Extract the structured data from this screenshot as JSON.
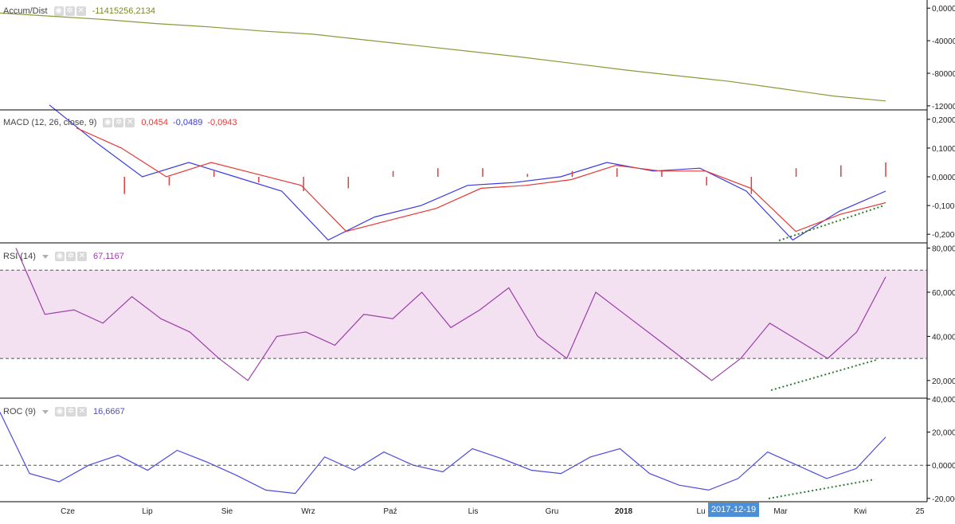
{
  "colors": {
    "accum": "#8a9a3a",
    "macd": "#3b3be0",
    "signal": "#e53935",
    "hist": "#d94040",
    "rsi": "#9b3fa6",
    "rsi_band": "#f3e1f2",
    "roc": "#4a4ae0",
    "trend": "#2e7d32",
    "axis": "#000000",
    "grid_dash": "#555555"
  },
  "panes": {
    "accum": {
      "title": "Accum/Dist",
      "value": "-11415256,2134",
      "ticks": [
        "0,0000",
        "-40000",
        "-80000",
        "-12000"
      ]
    },
    "macd": {
      "title": "MACD (12, 26, close, 9)",
      "values": [
        "0,0454",
        "-0,0489",
        "-0,0943"
      ],
      "ticks": [
        "0,2000",
        "0,1000",
        "0,0000",
        "-0,100",
        "-0,200"
      ]
    },
    "rsi": {
      "title": "RSI (14)",
      "value": "67,1167",
      "ticks": [
        "80,0000",
        "60,0000",
        "40,0000",
        "20,0000"
      ]
    },
    "roc": {
      "title": "ROC (9)",
      "value": "16,6667",
      "ticks": [
        "40,0000",
        "20,0000",
        "0,0000",
        "-20,000"
      ]
    }
  },
  "xaxis": {
    "labels": [
      "Cze",
      "Lip",
      "Sie",
      "Wrz",
      "Paź",
      "Lis",
      "Gru",
      "2018",
      "Lu",
      "Mar",
      "Kwi",
      "25"
    ]
  },
  "crosshair_date": "2017-12-19",
  "chart_data": [
    {
      "type": "line",
      "title": "Accum/Dist",
      "series": [
        {
          "name": "Accum/Dist",
          "values": [
            -0.6,
            -1.0,
            -1.4,
            -1.9,
            -2.3,
            -2.8,
            -3.2,
            -3.9,
            -4.6,
            -5.3,
            -6.0,
            -6.8,
            -7.6,
            -8.3,
            -9.0,
            -9.9,
            -10.8,
            -11.4
          ]
        }
      ],
      "ylim": [
        -12500,
        1000
      ]
    },
    {
      "type": "line",
      "title": "MACD (12, 26, close, 9)",
      "series": [
        {
          "name": "MACD",
          "values": [
            0.25,
            0.12,
            0.0,
            0.05,
            0.0,
            -0.05,
            -0.22,
            -0.14,
            -0.1,
            -0.03,
            -0.02,
            0.0,
            0.05,
            0.02,
            0.03,
            -0.05,
            -0.22,
            -0.12,
            -0.05
          ]
        },
        {
          "name": "Signal",
          "values": [
            0.17,
            0.1,
            0.0,
            0.05,
            0.01,
            -0.03,
            -0.19,
            -0.15,
            -0.11,
            -0.04,
            -0.03,
            -0.01,
            0.04,
            0.02,
            0.02,
            -0.04,
            -0.19,
            -0.13,
            -0.09
          ]
        },
        {
          "name": "Histogram",
          "values": [
            0.0,
            -0.06,
            -0.03,
            0.02,
            -0.02,
            -0.05,
            -0.04,
            0.02,
            0.03,
            0.03,
            0.01,
            0.02,
            0.03,
            0.02,
            -0.03,
            -0.06,
            0.03,
            0.04,
            0.05
          ]
        }
      ],
      "ylim": [
        -0.23,
        0.23
      ]
    },
    {
      "type": "line",
      "title": "RSI (14)",
      "series": [
        {
          "name": "RSI",
          "values": [
            80,
            50,
            52,
            46,
            58,
            48,
            42,
            30,
            20,
            40,
            42,
            36,
            50,
            48,
            60,
            44,
            52,
            62,
            40,
            30,
            60,
            50,
            40,
            30,
            20,
            30,
            46,
            38,
            30,
            42,
            67
          ]
        }
      ],
      "ylim": [
        12,
        82
      ]
    },
    {
      "type": "line",
      "title": "ROC (9)",
      "series": [
        {
          "name": "ROC",
          "values": [
            32,
            -5,
            -10,
            0,
            6,
            -3,
            9,
            2,
            -6,
            -15,
            -17,
            5,
            -3,
            8,
            0,
            -4,
            10,
            4,
            -3,
            -5,
            5,
            10,
            -5,
            -12,
            -15,
            -8,
            8,
            0,
            -8,
            -2,
            17
          ]
        }
      ],
      "ylim": [
        -22,
        40
      ]
    }
  ]
}
